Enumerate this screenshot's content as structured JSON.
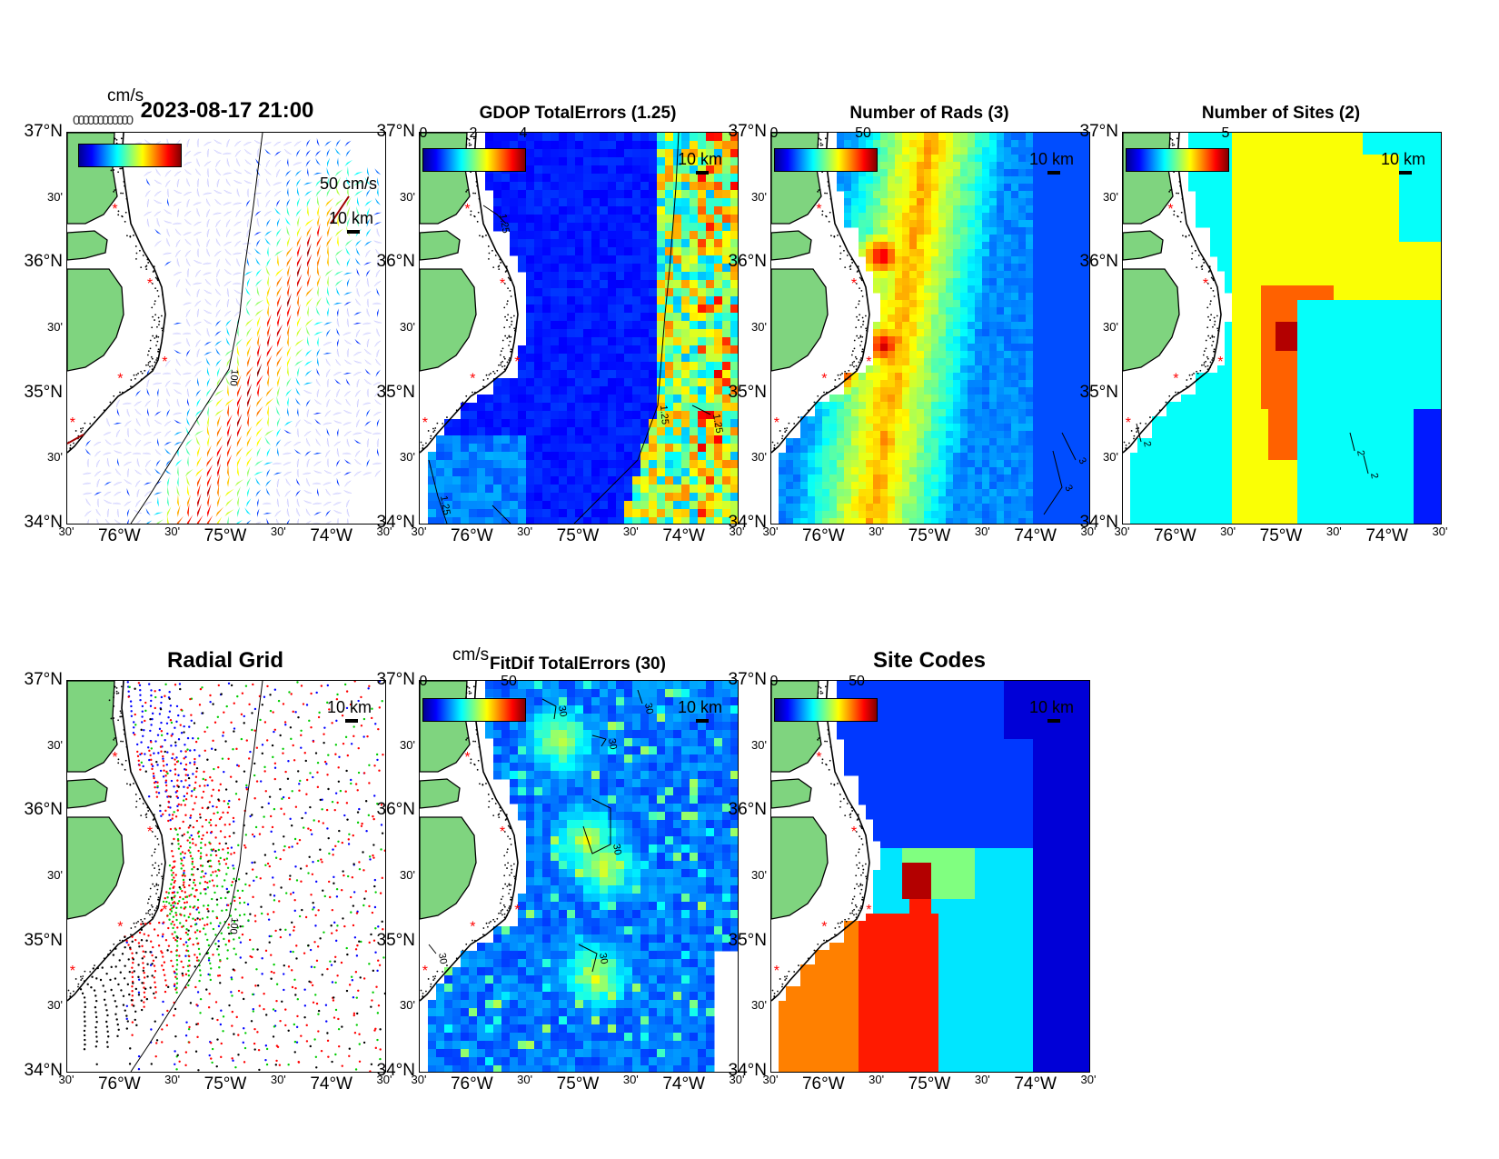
{
  "figure": {
    "timestamp": "2023-08-17 21:00",
    "vector_unit": "cm/s",
    "ref_vector_label": "50 cm/s",
    "scale_label": "10 km",
    "overlapping_legend_text": "000000000000"
  },
  "axes": {
    "y_major": [
      "37°N",
      "36°N",
      "35°N",
      "34°N"
    ],
    "y_minor": [
      "30'",
      "30'",
      "30'"
    ],
    "x_labels": [
      "30'",
      "76°W",
      "30'",
      "75°W",
      "30'",
      "74°W",
      "30'"
    ]
  },
  "panels": [
    {
      "id": "total-vectors",
      "title": "",
      "colorbar_ticks": [],
      "contours": [
        "100"
      ]
    },
    {
      "id": "gdop",
      "title": "GDOP TotalErrors (1.25)",
      "colorbar_ticks": [
        "0",
        "2",
        "4"
      ],
      "contours": [
        "1.25",
        "1.25",
        "1.25",
        "1.25",
        "1.25"
      ]
    },
    {
      "id": "num-rads",
      "title": "Number of Rads (3)",
      "colorbar_ticks": [
        "0",
        "50"
      ],
      "contours": [
        "3",
        "3"
      ]
    },
    {
      "id": "num-sites",
      "title": "Number of Sites (2)",
      "colorbar_ticks": [
        "5"
      ],
      "contours": [
        "2",
        "2",
        "2"
      ]
    },
    {
      "id": "radial-grid",
      "title": "Radial Grid",
      "colorbar_ticks": [],
      "contours": [
        "100",
        "100"
      ]
    },
    {
      "id": "fitdif",
      "title": "FitDif TotalErrors (30)",
      "unit": "cm/s",
      "colorbar_ticks": [
        "0",
        "50"
      ],
      "contours": [
        "30",
        "30",
        "30",
        "30",
        "30",
        "30"
      ]
    },
    {
      "id": "site-codes",
      "title": "Site Codes",
      "colorbar_ticks": [
        "0",
        "50"
      ],
      "contours": []
    }
  ],
  "colors": {
    "land": "#7fd47f",
    "coast": "#000000",
    "site_marker": "#ff0000",
    "colormap": [
      "#00008f",
      "#0000ff",
      "#0080ff",
      "#00ffff",
      "#80ff80",
      "#ffff00",
      "#ff8000",
      "#ff0000",
      "#800000"
    ]
  },
  "map": {
    "lat_range": [
      34,
      37
    ],
    "lon_range": [
      -76.5,
      -73.5
    ],
    "sites": [
      [
        -76.05,
        36.42
      ],
      [
        -75.72,
        35.85
      ],
      [
        -75.58,
        35.25
      ],
      [
        -76.0,
        35.12
      ],
      [
        -76.45,
        34.78
      ]
    ]
  }
}
